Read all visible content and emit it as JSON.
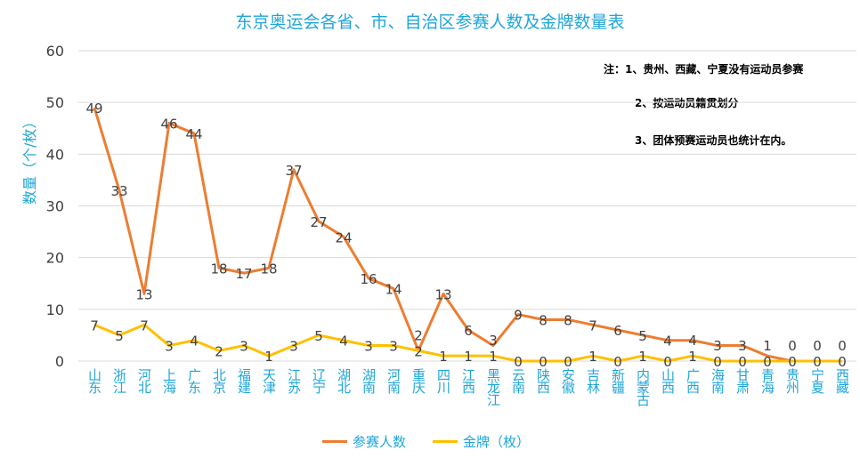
{
  "chart_data": {
    "type": "line",
    "title": "东京奥运会各省、市、自治区参赛人数及金牌数量表",
    "ylabel": "数量（个/枚）",
    "ylim": [
      0,
      60
    ],
    "yticks": [
      0,
      10,
      20,
      30,
      40,
      50,
      60
    ],
    "grid": true,
    "legend_position": "bottom",
    "categories": [
      "山东",
      "浙江",
      "河北",
      "上海",
      "广东",
      "北京",
      "福建",
      "天津",
      "江苏",
      "辽宁",
      "湖北",
      "湖南",
      "河南",
      "重庆",
      "四川",
      "江西",
      "黑龙江",
      "云南",
      "陕西",
      "安徽",
      "吉林",
      "新疆",
      "内蒙古",
      "山西",
      "广西",
      "海南",
      "甘肃",
      "青海",
      "贵州",
      "宁夏",
      "西藏"
    ],
    "series": [
      {
        "name": "参赛人数",
        "color": "#ed7d31",
        "values": [
          49,
          33,
          13,
          46,
          44,
          18,
          17,
          18,
          37,
          27,
          24,
          16,
          14,
          2,
          13,
          6,
          3,
          9,
          8,
          8,
          7,
          6,
          5,
          4,
          4,
          3,
          3,
          1,
          0,
          0,
          0
        ]
      },
      {
        "name": "金牌（枚）",
        "color": "#ffc000",
        "values": [
          7,
          5,
          7,
          3,
          4,
          2,
          3,
          1,
          3,
          5,
          4,
          3,
          3,
          2,
          1,
          1,
          1,
          0,
          0,
          0,
          1,
          0,
          1,
          0,
          1,
          0,
          0,
          0,
          0,
          0,
          0
        ]
      }
    ],
    "notes": [
      "注：1、贵州、西藏、宁夏没有运动员参赛",
      "2、按运动员籍贯划分",
      "3、团体预赛运动员也统计在内。"
    ]
  }
}
